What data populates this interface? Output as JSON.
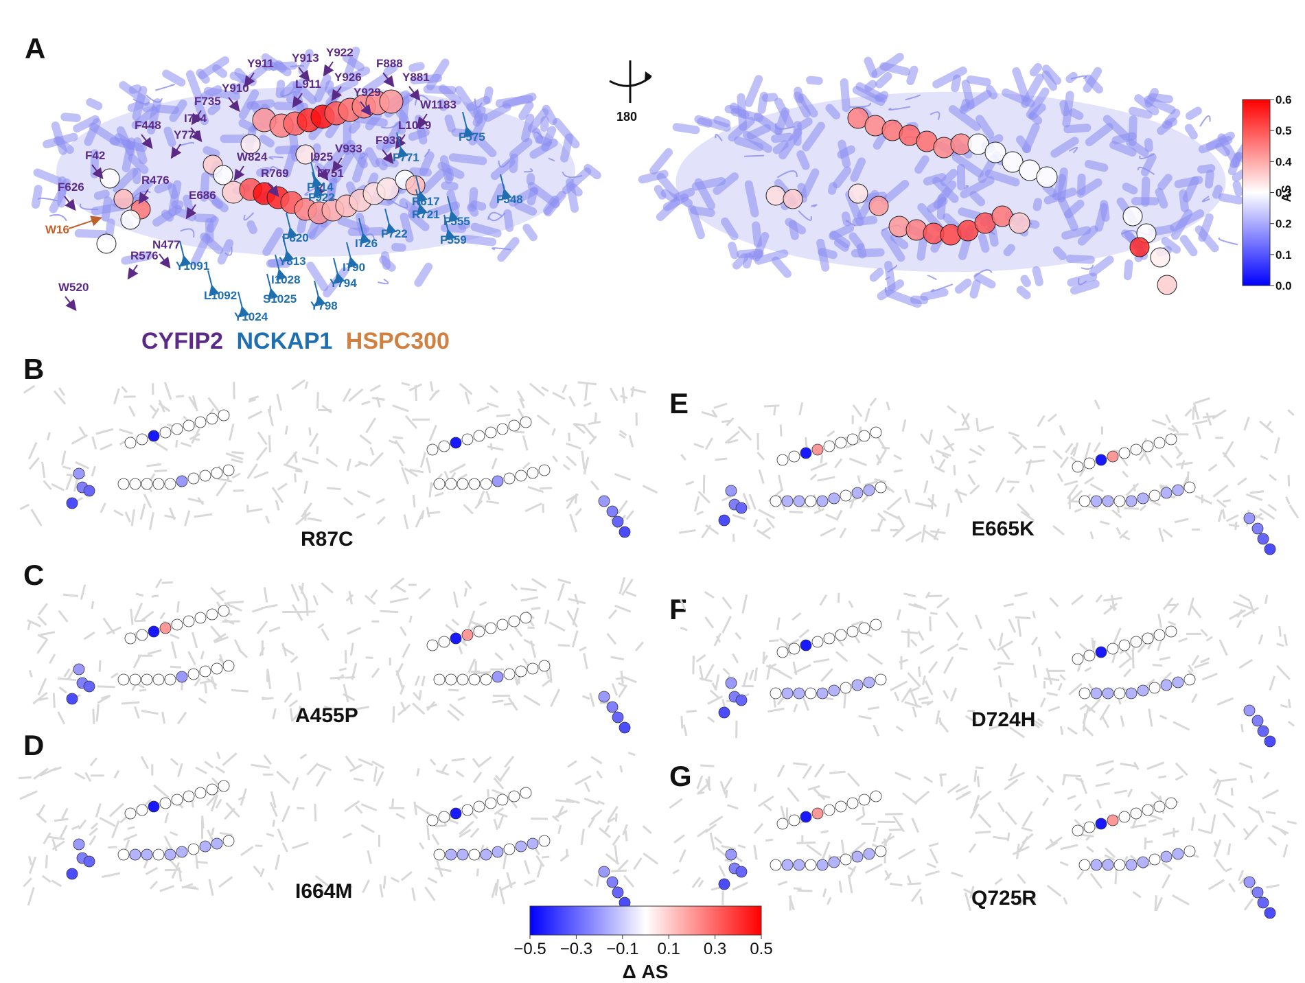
{
  "panel_letters": [
    "A",
    "B",
    "C",
    "D",
    "E",
    "F",
    "G"
  ],
  "rotation_label": "180",
  "protein_legend": [
    {
      "name": "CYFIP2",
      "color": "#5b2a86"
    },
    {
      "name": "NCKAP1",
      "color": "#1f6fb0"
    },
    {
      "name": "HSPC300",
      "color": "#d08040"
    }
  ],
  "residue_labels": {
    "CYFIP2": [
      "Y911",
      "Y913",
      "Y922",
      "F888",
      "L911",
      "Y910",
      "Y926",
      "Y881",
      "F735",
      "Y929",
      "W1183",
      "I734",
      "L1029",
      "F448",
      "Y770",
      "F932",
      "V933",
      "F42",
      "W824",
      "I925",
      "R476",
      "R769",
      "F751",
      "F626",
      "E686",
      "N477",
      "R576",
      "W520"
    ],
    "NCKAP1": [
      "F575",
      "F771",
      "F814",
      "F922",
      "R617",
      "F548",
      "R721",
      "F555",
      "F722",
      "F559",
      "F820",
      "I726",
      "Y813",
      "I790",
      "Y1091",
      "I1028",
      "Y794",
      "L1092",
      "S1025",
      "Y798",
      "Y1024"
    ],
    "HSPC300": [
      "W16"
    ]
  },
  "colorbar_AS": {
    "title": "AS",
    "ticks": [
      "0.6",
      "0.5",
      "0.4",
      "0.3",
      "0.2",
      "0.1",
      "0.0"
    ],
    "range": [
      0.0,
      0.6
    ],
    "colors": [
      "#0000ff",
      "#ffffff",
      "#ff0000"
    ]
  },
  "colorbar_delta": {
    "title": "Δ AS",
    "ticks": [
      "−0.5",
      "−0.3",
      "−0.1",
      "0.1",
      "0.3",
      "0.5"
    ],
    "range": [
      -0.5,
      0.5
    ],
    "colors": [
      "#0000ff",
      "#ffffff",
      "#ff0000"
    ]
  },
  "mutants": [
    {
      "panel": "B",
      "name": "R87C"
    },
    {
      "panel": "C",
      "name": "A455P"
    },
    {
      "panel": "D",
      "name": "I664M"
    },
    {
      "panel": "E",
      "name": "E665K"
    },
    {
      "panel": "F",
      "name": "D724H"
    },
    {
      "panel": "G",
      "name": "Q725R"
    }
  ]
}
